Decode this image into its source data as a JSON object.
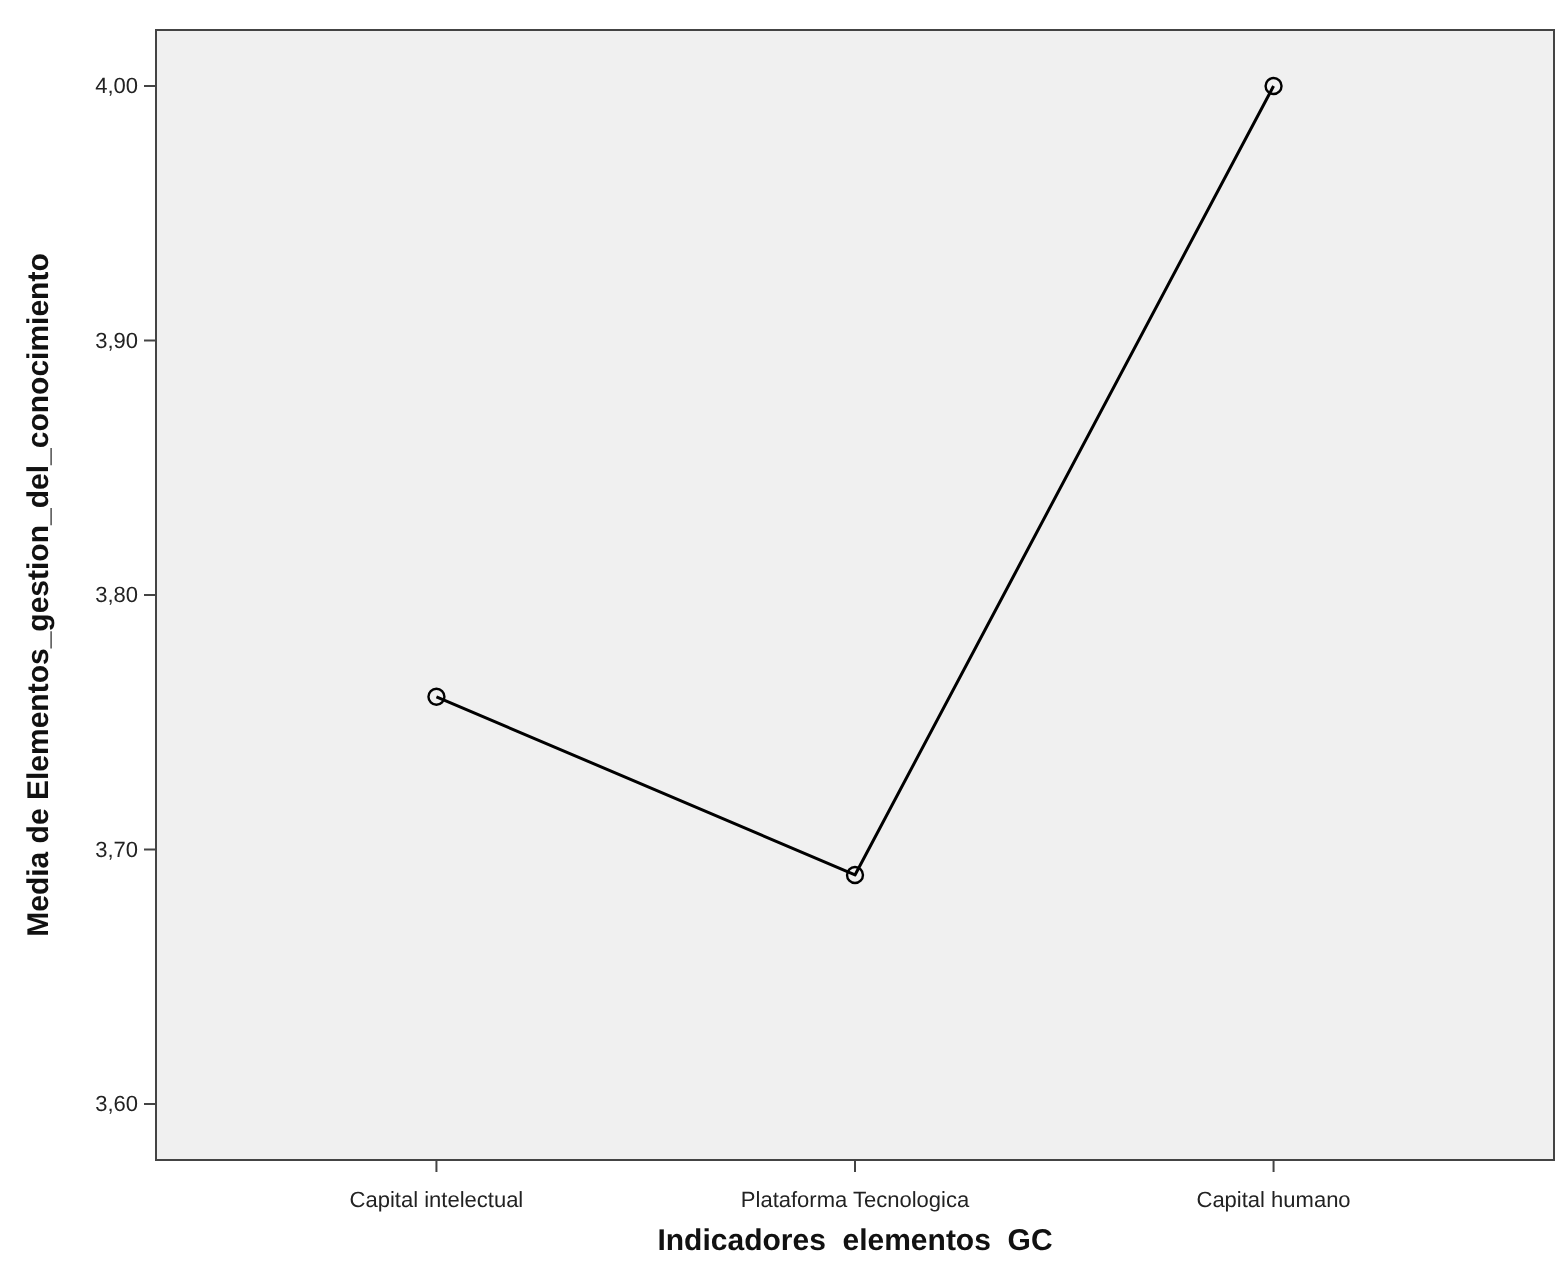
{
  "chart_data": {
    "type": "line",
    "xlabel": "Indicadores  elementos  GC",
    "ylabel": "Media de Elementos_gestion_del_conocimiento",
    "categories": [
      "Capital intelectual",
      "Plataforma Tecnologica",
      "Capital humano"
    ],
    "series": [
      {
        "color": "#000000",
        "values": [
          3.76,
          3.69,
          4.0
        ]
      }
    ],
    "ylim": [
      3.578,
      4.022
    ],
    "yticks": [
      {
        "value": 3.6,
        "label": "3,60"
      },
      {
        "value": 3.7,
        "label": "3,70"
      },
      {
        "value": 3.8,
        "label": "3,80"
      },
      {
        "value": 3.9,
        "label": "3,90"
      },
      {
        "value": 4.0,
        "label": "4,00"
      }
    ],
    "marker": "circle",
    "line_style": "solid"
  }
}
